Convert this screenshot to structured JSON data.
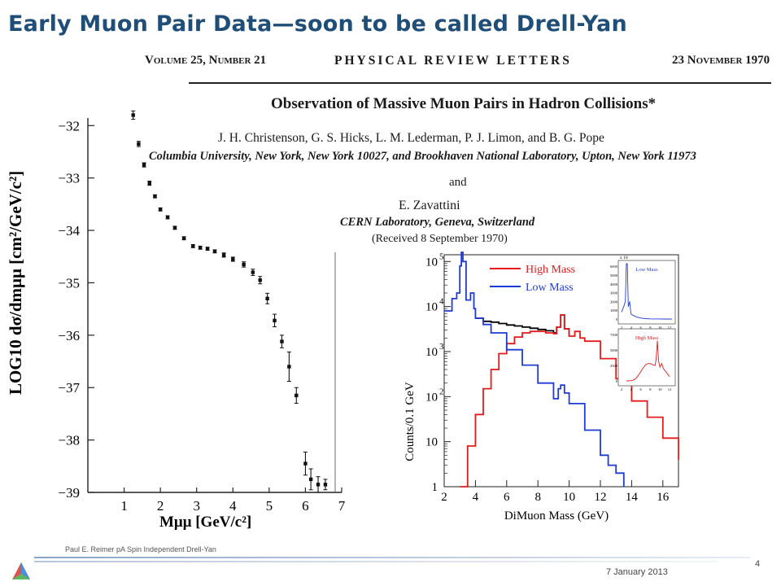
{
  "slide": {
    "title": "Early Muon Pair Data—soon to be called Drell-Yan",
    "footer": "Paul E. Reimer pA Spin Independent Drell-Yan",
    "date": "7 January 2013",
    "page": "4"
  },
  "paper": {
    "volume": "Volume 25, Number 21",
    "journal": "PHYSICAL REVIEW LETTERS",
    "date": "23 November 1970",
    "title": "Observation of Massive Muon Pairs in Hadron Collisions*",
    "authors": "J. H. Christenson, G. S. Hicks, L. M. Lederman, P. J. Limon, and B. G. Pope",
    "affiliation1": "Columbia University, New York, New York 10027, and Brookhaven National Laboratory, Upton, New York 11973",
    "and": "and",
    "author2": "E. Zavattini",
    "affiliation2": "CERN Laboratory, Geneva, Switzerland",
    "received": "(Received 8 September 1970)"
  },
  "colors": {
    "title": "#1f4e79",
    "high_mass": "#e41a1c",
    "low_mass": "#1f3bd6",
    "total": "#000000"
  },
  "chart_data": [
    {
      "type": "scatter",
      "xlabel": "Mμμ [GeV/c²]",
      "ylabel": "LOG10 dσ/dmμμ [cm²/GeV/c²]",
      "xlim": [
        0,
        7
      ],
      "ylim": [
        -39,
        -31.7
      ],
      "xticks": [
        1,
        2,
        3,
        4,
        5,
        6,
        7
      ],
      "yticks": [
        -32,
        -33,
        -34,
        -35,
        -36,
        -37,
        -38,
        -39
      ],
      "points": [
        {
          "x": 1.25,
          "y": -31.8,
          "err": 0.08
        },
        {
          "x": 1.4,
          "y": -32.35,
          "err": 0.05
        },
        {
          "x": 1.55,
          "y": -32.75,
          "err": 0.04
        },
        {
          "x": 1.7,
          "y": -33.1,
          "err": 0.04
        },
        {
          "x": 1.85,
          "y": -33.35,
          "err": 0.03
        },
        {
          "x": 2.0,
          "y": -33.6,
          "err": 0.03
        },
        {
          "x": 2.2,
          "y": -33.75,
          "err": 0.03
        },
        {
          "x": 2.4,
          "y": -33.95,
          "err": 0.03
        },
        {
          "x": 2.65,
          "y": -34.15,
          "err": 0.03
        },
        {
          "x": 2.9,
          "y": -34.3,
          "err": 0.03
        },
        {
          "x": 3.1,
          "y": -34.33,
          "err": 0.03
        },
        {
          "x": 3.3,
          "y": -34.35,
          "err": 0.03
        },
        {
          "x": 3.5,
          "y": -34.4,
          "err": 0.03
        },
        {
          "x": 3.75,
          "y": -34.47,
          "err": 0.04
        },
        {
          "x": 4.0,
          "y": -34.55,
          "err": 0.04
        },
        {
          "x": 4.3,
          "y": -34.65,
          "err": 0.05
        },
        {
          "x": 4.55,
          "y": -34.8,
          "err": 0.06
        },
        {
          "x": 4.75,
          "y": -34.95,
          "err": 0.07
        },
        {
          "x": 4.95,
          "y": -35.3,
          "err": 0.1
        },
        {
          "x": 5.15,
          "y": -35.72,
          "err": 0.12
        },
        {
          "x": 5.35,
          "y": -36.12,
          "err": 0.12
        },
        {
          "x": 5.55,
          "y": -36.6,
          "err": 0.28
        },
        {
          "x": 5.75,
          "y": -37.15,
          "err": 0.15
        },
        {
          "x": 6.0,
          "y": -38.45,
          "err": 0.22
        },
        {
          "x": 6.15,
          "y": -38.75,
          "err": 0.2
        },
        {
          "x": 6.35,
          "y": -38.85,
          "err": 0.15
        },
        {
          "x": 6.55,
          "y": -38.85,
          "err": 0.1
        }
      ]
    },
    {
      "type": "line",
      "xlabel": "DiMuon Mass (GeV)",
      "ylabel": "Counts/0.1 GeV",
      "xlim": [
        2,
        17
      ],
      "ylim": [
        1,
        100000
      ],
      "yscale": "log",
      "xticks": [
        2,
        4,
        6,
        8,
        10,
        12,
        14,
        16
      ],
      "yticks": [
        1,
        10,
        100,
        1000,
        10000,
        100000
      ],
      "ytick_labels": [
        "1",
        "10",
        "10 2",
        "10 3",
        "10 4",
        "10 5"
      ],
      "legend": "top-center",
      "series": [
        {
          "name": "High Mass",
          "color": "#e41a1c",
          "x": [
            3.0,
            3.5,
            4.0,
            4.5,
            5.0,
            5.5,
            6.0,
            6.5,
            7.0,
            7.5,
            8.0,
            8.5,
            9.0,
            9.2,
            9.46,
            9.7,
            10.0,
            10.36,
            10.7,
            11.0,
            12.0,
            13.0,
            14.0,
            15.0,
            16.0,
            17.0
          ],
          "y": [
            1,
            8,
            40,
            150,
            400,
            900,
            1500,
            2100,
            2600,
            2800,
            2800,
            2600,
            2500,
            3500,
            6500,
            3200,
            2200,
            2800,
            2000,
            1700,
            700,
            250,
            80,
            35,
            12,
            4
          ]
        },
        {
          "name": "Low Mass",
          "color": "#1f3bd6",
          "x": [
            2.0,
            2.5,
            2.8,
            3.0,
            3.1,
            3.2,
            3.4,
            3.69,
            3.9,
            4.0,
            4.5,
            5.0,
            6.0,
            7.0,
            8.0,
            9.0,
            9.3,
            9.46,
            9.7,
            10.0,
            11.0,
            12.0,
            12.5,
            13.0,
            13.5
          ],
          "y": [
            8000,
            15000,
            20000,
            80000,
            160000,
            100000,
            14000,
            20000,
            9000,
            5500,
            4000,
            2600,
            1100,
            500,
            200,
            90,
            150,
            180,
            120,
            70,
            18,
            5,
            3,
            2,
            1
          ]
        },
        {
          "name": "",
          "color": "#000000",
          "x": [
            4.0,
            4.5,
            5.0,
            5.5,
            6.0,
            6.5,
            7.0,
            7.5,
            8.0,
            8.5,
            9.0,
            9.2,
            9.46,
            9.7,
            10.0
          ],
          "y": [
            5500,
            4700,
            4500,
            4200,
            3900,
            3700,
            3500,
            3300,
            3100,
            2900,
            2600,
            3500,
            6500,
            3200,
            2200
          ]
        }
      ],
      "insets": [
        {
          "label": "Low Mass",
          "xticks": [
            2,
            4,
            6,
            8,
            10,
            12
          ],
          "yticks": [
            0,
            1000,
            2000,
            3000,
            4000,
            5000,
            6000
          ],
          "scale_label": "x 10",
          "color": "#1f3bd6"
        },
        {
          "label": "High Mass",
          "xticks": [
            2,
            4,
            6,
            8,
            10,
            12
          ],
          "yticks": [
            0,
            2500,
            5000,
            7500
          ],
          "color": "#e41a1c"
        }
      ]
    }
  ]
}
